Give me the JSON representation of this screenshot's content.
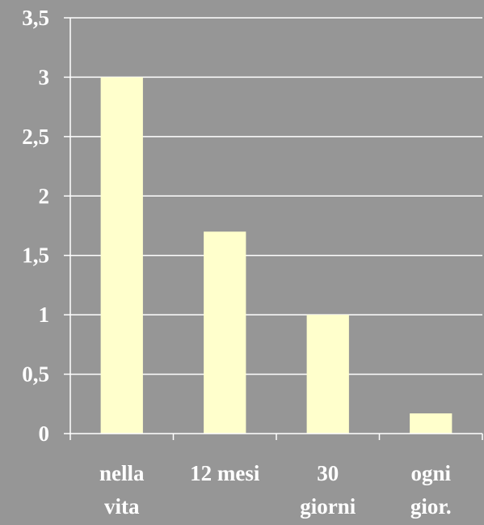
{
  "colors": {
    "background": "#969696",
    "bar": "#ffffcc",
    "gridline": "#ffffff",
    "text": "#ffffff"
  },
  "chart_data": {
    "type": "bar",
    "title": "",
    "xlabel": "",
    "ylabel": "",
    "categories": [
      [
        "nella",
        "vita"
      ],
      [
        "12 mesi"
      ],
      [
        "30",
        "giorni"
      ],
      [
        "ogni",
        "gior."
      ]
    ],
    "values": [
      3.0,
      1.7,
      1.0,
      0.17
    ],
    "ylim": [
      0,
      3.5
    ],
    "yticks": [
      0,
      0.5,
      1,
      1.5,
      2,
      2.5,
      3,
      3.5
    ],
    "ytick_labels": [
      "0",
      "0,5",
      "1",
      "1,5",
      "2",
      "2,5",
      "3",
      "3,5"
    ],
    "grid": true,
    "legend": "none"
  }
}
